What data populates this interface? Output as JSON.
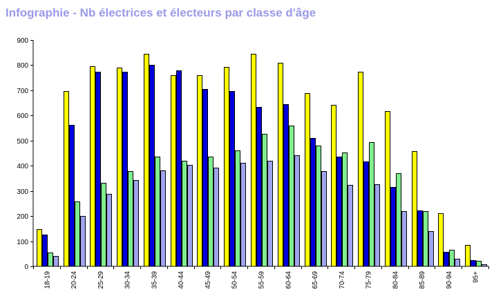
{
  "chart_data": {
    "type": "bar",
    "title": "Infographie - Nb électrices et électeurs par classe d'âge",
    "xlabel": "",
    "ylabel": "",
    "ylim": [
      0,
      900
    ],
    "yticks": [
      0,
      100,
      200,
      300,
      400,
      500,
      600,
      700,
      800,
      900
    ],
    "grid": false,
    "legend": "none",
    "categories": [
      "18-19",
      "20-24",
      "25-29",
      "30-34",
      "35-39",
      "40-44",
      "45-49",
      "50-54",
      "55-59",
      "60-64",
      "65-69",
      "70-74",
      "75-79",
      "80-84",
      "85-89",
      "90-94",
      "95+"
    ],
    "series": [
      {
        "color": "#ffff00",
        "values": [
          148,
          698,
          796,
          790,
          845,
          760,
          760,
          793,
          845,
          810,
          690,
          642,
          774,
          618,
          457,
          212,
          85
        ]
      },
      {
        "color": "#0000dd",
        "values": [
          125,
          562,
          775,
          775,
          800,
          780,
          706,
          698,
          635,
          646,
          510,
          436,
          418,
          315,
          223,
          58,
          25
        ]
      },
      {
        "color": "#7fee8f",
        "values": [
          55,
          257,
          333,
          378,
          435,
          420,
          435,
          460,
          528,
          560,
          481,
          453,
          495,
          370,
          220,
          65,
          22
        ]
      },
      {
        "color": "#9fa4ee",
        "values": [
          40,
          200,
          287,
          343,
          382,
          404,
          393,
          412,
          420,
          443,
          380,
          323,
          326,
          220,
          140,
          30,
          8
        ]
      }
    ]
  }
}
